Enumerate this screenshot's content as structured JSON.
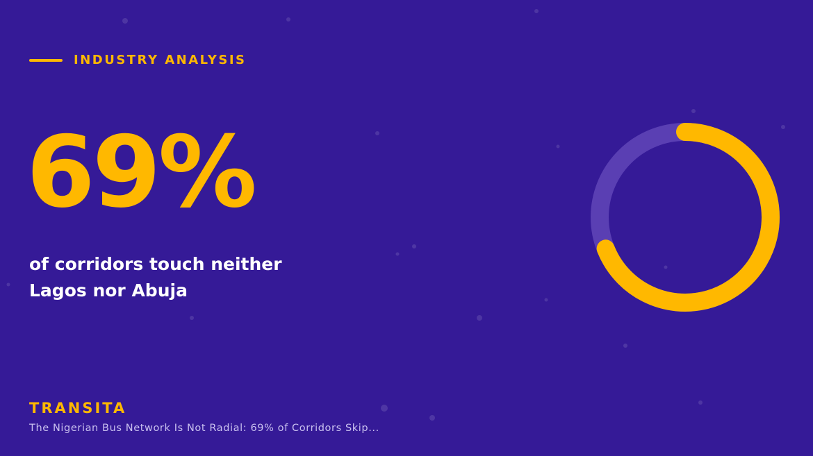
{
  "kicker": "INDUSTRY ANALYSIS",
  "stat": {
    "value": 69,
    "label": "69%"
  },
  "description": [
    "of corridors touch neither",
    "Lagos nor Abuja"
  ],
  "brand": "TRANSITA",
  "headline": "The Nigerian Bus Network Is Not Radial: 69% of Corridors Skip..."
}
